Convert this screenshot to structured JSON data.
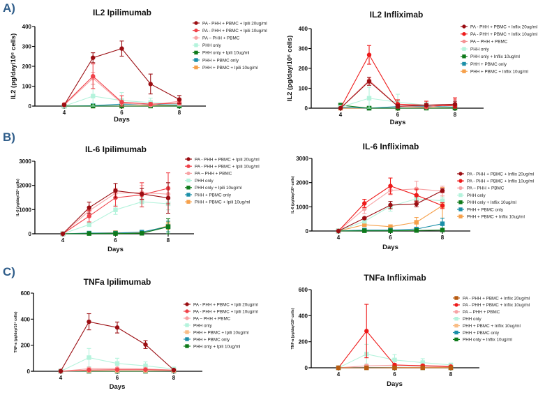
{
  "figure": {
    "section_labels": [
      "A)",
      "B)",
      "C)"
    ]
  },
  "chart_data": [
    {
      "id": "il2-ipilimumab",
      "type": "line",
      "title": "IL2 Ipilimumab",
      "xlabel": "Days",
      "ylabel": "IL2 (pg/day/10⁶ cells)",
      "x": [
        4,
        5,
        6,
        7,
        8
      ],
      "xticks": [
        4,
        6,
        8
      ],
      "xlim": [
        3.2,
        9
      ],
      "yticks": [
        0,
        100,
        200,
        300,
        400
      ],
      "ylim": [
        0,
        400
      ],
      "legend_position": "right",
      "series": [
        {
          "name": "PA - PHH + PBMC + Ipili 20ug/ml",
          "color": "#9b0d12",
          "marker": "circle",
          "values": [
            5,
            243,
            289,
            111,
            33
          ],
          "err": [
            8,
            25,
            38,
            50,
            20
          ]
        },
        {
          "name": "PA - PHH + PBMC + Ipili  10ug/ml",
          "color": "#f0424a",
          "marker": "circle",
          "values": [
            8,
            150,
            20,
            10,
            15
          ],
          "err": [
            6,
            62,
            32,
            8,
            10
          ]
        },
        {
          "name": "PA – PHH + PBMC",
          "color": "#f7a3a5",
          "marker": "circle",
          "values": [
            5,
            140,
            15,
            5,
            25
          ],
          "err": [
            4,
            30,
            15,
            6,
            15
          ]
        },
        {
          "name": "PHH only",
          "color": "#b4f3dc",
          "marker": "square",
          "values": [
            0,
            50,
            28,
            18,
            10
          ],
          "err": [
            2,
            60,
            40,
            22,
            10
          ]
        },
        {
          "name": "PHH only + Ipili 10ug/ml",
          "color": "#0e7a1a",
          "marker": "square",
          "values": [
            0,
            0,
            0,
            0,
            0
          ],
          "err": [
            0,
            2,
            2,
            2,
            2
          ]
        },
        {
          "name": "PHH + PBMC only",
          "color": "#1b8fa8",
          "marker": "square",
          "values": [
            0,
            2,
            10,
            8,
            5
          ],
          "err": [
            0,
            2,
            4,
            4,
            3
          ]
        },
        {
          "name": "PHH + PBMC + Ipili 10ug/ml",
          "color": "#f6a04a",
          "marker": "square",
          "values": [
            0,
            0,
            0,
            2,
            3
          ],
          "err": [
            0,
            1,
            1,
            2,
            2
          ]
        }
      ]
    },
    {
      "id": "il2-infliximab",
      "type": "line",
      "title": "IL2 Infliximab",
      "xlabel": "Days",
      "ylabel": "IL2 (pg/day/10⁶ cells)",
      "x": [
        4,
        5,
        6,
        7,
        8
      ],
      "xticks": [
        4,
        6,
        8
      ],
      "xlim": [
        3.2,
        9
      ],
      "yticks": [
        0,
        100,
        200,
        300,
        400
      ],
      "ylim": [
        0,
        400
      ],
      "legend_position": "right",
      "series": [
        {
          "name": "PA - PHH + PBMC + Inflix 20ug/ml",
          "color": "#9b0d12",
          "marker": "circle",
          "values": [
            0,
            135,
            10,
            15,
            20
          ],
          "err": [
            4,
            20,
            10,
            8,
            15
          ]
        },
        {
          "name": "PA - PHH + PBMC + Inflix 10ug/ml",
          "color": "#ee1a1a",
          "marker": "circle",
          "values": [
            0,
            268,
            20,
            15,
            12
          ],
          "err": [
            4,
            47,
            22,
            20,
            40
          ]
        },
        {
          "name": "PA – PHH + PBMC",
          "color": "#f49294",
          "marker": "circle",
          "values": [
            0,
            140,
            10,
            5,
            20
          ],
          "err": [
            3,
            15,
            10,
            6,
            25
          ]
        },
        {
          "name": "PHH only",
          "color": "#b4f3dc",
          "marker": "square",
          "values": [
            5,
            50,
            30,
            15,
            15
          ],
          "err": [
            2,
            55,
            40,
            15,
            10
          ]
        },
        {
          "name": "PHH only + Inflix 10ug/ml",
          "color": "#0e7a1a",
          "marker": "square",
          "values": [
            15,
            0,
            0,
            0,
            0
          ],
          "err": [
            10,
            1,
            1,
            1,
            8
          ]
        },
        {
          "name": "PHH + PBMC only",
          "color": "#1b8fa8",
          "marker": "square",
          "values": [
            5,
            0,
            8,
            10,
            5
          ],
          "err": [
            3,
            1,
            3,
            3,
            3
          ]
        },
        {
          "name": "PHH + PBMC + Inflix 10ug/ml",
          "color": "#f6a04a",
          "marker": "square",
          "values": [
            0,
            0,
            0,
            2,
            2
          ],
          "err": [
            0,
            1,
            1,
            1,
            1
          ]
        }
      ]
    },
    {
      "id": "il6-ipilimumab",
      "type": "line",
      "title": "IL-6 Ipilimumab",
      "xlabel": "Days",
      "ylabel": "IL-6 (pg/day/10⁶ cells)",
      "x": [
        4,
        5,
        6,
        7,
        8
      ],
      "xticks": [
        4,
        6,
        8
      ],
      "xlim": [
        3.2,
        9
      ],
      "yticks": [
        0,
        1000,
        2000,
        3000
      ],
      "ylim": [
        0,
        3000
      ],
      "legend_position": "right",
      "series": [
        {
          "name": "PA - PHH + PBMC + Ipili 20ug/ml",
          "color": "#9b0d12",
          "marker": "circle",
          "values": [
            0,
            1080,
            1780,
            1650,
            1480
          ],
          "err": [
            0,
            230,
            300,
            220,
            630
          ]
        },
        {
          "name": "PA - PHH + PBMC + Ipili  10ug/ml",
          "color": "#f0424a",
          "marker": "circle",
          "values": [
            0,
            730,
            1490,
            1610,
            1880
          ],
          "err": [
            0,
            240,
            350,
            500,
            640
          ]
        },
        {
          "name": "PA – PHH + PBMC",
          "color": "#f7a3a5",
          "marker": "circle",
          "values": [
            0,
            950,
            1680,
            1700,
            1640
          ],
          "err": [
            0,
            150,
            200,
            300,
            200
          ]
        },
        {
          "name": "PHH only",
          "color": "#b4f3dc",
          "marker": "square",
          "values": [
            0,
            380,
            990,
            1320,
            1240
          ],
          "err": [
            0,
            80,
            190,
            200,
            250
          ]
        },
        {
          "name": "PHH only + Ipili 10ug/ml",
          "color": "#0e7a1a",
          "marker": "square",
          "values": [
            0,
            10,
            10,
            20,
            290
          ],
          "err": [
            0,
            10,
            10,
            10,
            330
          ]
        },
        {
          "name": "PHH + PBMC only",
          "color": "#1b8fa8",
          "marker": "square",
          "values": [
            0,
            30,
            30,
            70,
            300
          ],
          "err": [
            0,
            10,
            10,
            20,
            220
          ]
        },
        {
          "name": "PHH + PBMC + Ipili 10ug/ml",
          "color": "#f6a04a",
          "marker": "square",
          "values": [
            0,
            20,
            50,
            40,
            330
          ],
          "err": [
            0,
            10,
            20,
            10,
            150
          ]
        }
      ]
    },
    {
      "id": "il6-infliximab",
      "type": "line",
      "title": "IL-6 Infliximab",
      "xlabel": "Days",
      "ylabel": "IL-6 (pg/day/10⁶ cells)",
      "x": [
        4,
        5,
        6,
        7,
        8
      ],
      "xticks": [
        4,
        6,
        8
      ],
      "xlim": [
        3.2,
        9
      ],
      "yticks": [
        0,
        1000,
        2000,
        3000
      ],
      "ylim": [
        0,
        3000
      ],
      "legend_position": "right",
      "series": [
        {
          "name": "PA - PHH + PBMC + Inflix 20ug/ml",
          "color": "#9b0d12",
          "marker": "circle",
          "values": [
            0,
            530,
            1070,
            1120,
            1670
          ],
          "err": [
            0,
            40,
            150,
            120,
            80
          ]
        },
        {
          "name": "PA - PHH + PBMC + Inflix 10ug/ml",
          "color": "#ee1a1a",
          "marker": "circle",
          "values": [
            0,
            1140,
            1860,
            1480,
            1050
          ],
          "err": [
            0,
            170,
            330,
            250,
            120
          ]
        },
        {
          "name": "PA – PHH + PBMC",
          "color": "#f7a3a5",
          "marker": "circle",
          "values": [
            0,
            920,
            1680,
            1740,
            1650
          ],
          "err": [
            0,
            200,
            180,
            320,
            200
          ]
        },
        {
          "name": "PHH only",
          "color": "#b4f3dc",
          "marker": "square",
          "values": [
            0,
            400,
            1020,
            1330,
            1250
          ],
          "err": [
            0,
            60,
            200,
            100,
            150
          ]
        },
        {
          "name": "PHH only + Inflix 10ug/ml",
          "color": "#0e7a1a",
          "marker": "square",
          "values": [
            0,
            10,
            10,
            20,
            40
          ],
          "err": [
            0,
            10,
            10,
            10,
            20
          ]
        },
        {
          "name": "PHH + PBMC only",
          "color": "#1b8fa8",
          "marker": "square",
          "values": [
            0,
            40,
            40,
            80,
            300
          ],
          "err": [
            0,
            10,
            10,
            30,
            230
          ]
        },
        {
          "name": "PHH + PBMC + Inflix 10ug/ml",
          "color": "#f6a04a",
          "marker": "square",
          "values": [
            0,
            260,
            180,
            360,
            1050
          ],
          "err": [
            0,
            40,
            40,
            200,
            750
          ]
        }
      ]
    },
    {
      "id": "tnfa-ipilimumab",
      "type": "line",
      "title": "TNFa Ipilimumab",
      "xlabel": "Days",
      "ylabel": "TNF-a (pg/day/10⁶ cells)",
      "x": [
        4,
        5,
        6,
        7,
        8
      ],
      "xticks": [
        4,
        6,
        8
      ],
      "xlim": [
        3.2,
        9
      ],
      "yticks": [
        0,
        200,
        400,
        600
      ],
      "ylim": [
        0,
        600
      ],
      "legend_position": "right",
      "series": [
        {
          "name": "PA - PHH + PBMC + Ipili 20ug/ml",
          "color": "#9b0d12",
          "marker": "circle",
          "values": [
            2,
            380,
            336,
            205,
            10
          ],
          "err": [
            0,
            62,
            42,
            30,
            5
          ]
        },
        {
          "name": "PA - PHH + PBMC + Ipili  10ug/ml",
          "color": "#f0424a",
          "marker": "circle",
          "values": [
            0,
            10,
            12,
            12,
            8
          ],
          "err": [
            0,
            5,
            5,
            5,
            4
          ]
        },
        {
          "name": "PA – PHH + PBMC",
          "color": "#f7a3a5",
          "marker": "circle",
          "values": [
            0,
            20,
            22,
            18,
            10
          ],
          "err": [
            0,
            8,
            8,
            8,
            5
          ]
        },
        {
          "name": "PHH only",
          "color": "#b4f3dc",
          "marker": "square",
          "values": [
            0,
            105,
            60,
            42,
            18
          ],
          "err": [
            0,
            70,
            40,
            30,
            10
          ]
        },
        {
          "name": "PHH + PBMC + Ipili 10ug/ml",
          "color": "#f9bd86",
          "marker": "square",
          "values": [
            0,
            5,
            5,
            5,
            5
          ],
          "err": [
            0,
            3,
            3,
            3,
            3
          ]
        },
        {
          "name": "PHH + PBMC only",
          "color": "#1b8fa8",
          "marker": "square",
          "values": [
            0,
            3,
            3,
            3,
            3
          ],
          "err": [
            0,
            2,
            2,
            2,
            2
          ]
        },
        {
          "name": "PHH only + Ipili 10ug/ml",
          "color": "#0e7a1a",
          "marker": "square",
          "values": [
            0,
            0,
            0,
            0,
            2
          ],
          "err": [
            0,
            1,
            1,
            1,
            1
          ]
        }
      ]
    },
    {
      "id": "tnfa-infliximab",
      "type": "line",
      "title": "TNFa Infliximab",
      "xlabel": "Days",
      "ylabel": "TNF-a (pg/day/10⁶ cells)",
      "x": [
        4,
        5,
        6,
        7,
        8
      ],
      "xticks": [
        4,
        6,
        8
      ],
      "xlim": [
        3.2,
        9
      ],
      "yticks": [
        0,
        200,
        400,
        600
      ],
      "ylim": [
        0,
        600
      ],
      "legend_position": "right",
      "series": [
        {
          "name": "PA - PHH + PBMC + Inflix 20ug/ml",
          "color": "#b85b10",
          "marker": "square",
          "values": [
            0,
            0,
            0,
            0,
            0
          ],
          "err": [
            0,
            1,
            1,
            1,
            1
          ]
        },
        {
          "name": "PA - PHH + PBMC + Inflix 10ug/ml",
          "color": "#ee1a1a",
          "marker": "circle",
          "values": [
            0,
            282,
            22,
            15,
            8
          ],
          "err": [
            0,
            205,
            10,
            8,
            6
          ]
        },
        {
          "name": "PA – PHH + PBMC",
          "color": "#f7a3a5",
          "marker": "circle",
          "values": [
            0,
            15,
            20,
            18,
            12
          ],
          "err": [
            0,
            8,
            8,
            8,
            6
          ]
        },
        {
          "name": "PHH only",
          "color": "#b4f3dc",
          "marker": "square",
          "values": [
            0,
            105,
            60,
            40,
            22
          ],
          "err": [
            0,
            75,
            42,
            30,
            10
          ]
        },
        {
          "name": "PHH + PBMC + Inflix 10ug/ml",
          "color": "#f9bd86",
          "marker": "square",
          "values": [
            0,
            0,
            2,
            3,
            2
          ],
          "err": [
            0,
            2,
            2,
            2,
            2
          ]
        },
        {
          "name": "PHH + PBMC only",
          "color": "#1b8fa8",
          "marker": "square",
          "values": [
            0,
            2,
            3,
            3,
            2
          ],
          "err": [
            0,
            1,
            1,
            1,
            1
          ]
        },
        {
          "name": "PHH only + Inflix 10ug/ml",
          "color": "#0e7a1a",
          "marker": "square",
          "values": [
            0,
            0,
            0,
            0,
            0
          ],
          "err": [
            0,
            1,
            1,
            1,
            1
          ]
        }
      ]
    }
  ]
}
